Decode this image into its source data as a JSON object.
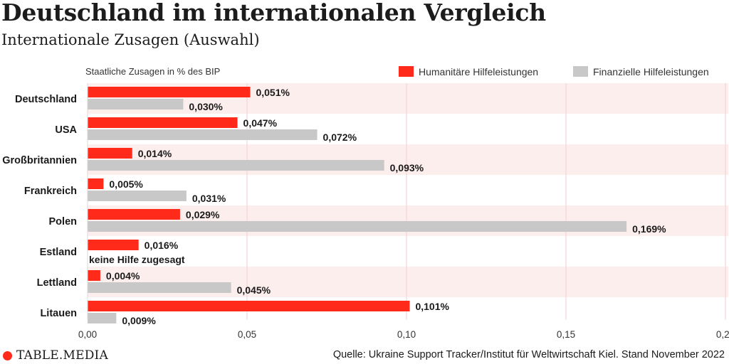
{
  "header": {
    "title": "Deutschland im internationalen Vergleich",
    "subtitle": "Internationale Zusagen (Auswahl)"
  },
  "footer": {
    "brand_main": "TABLE",
    "brand_dot": ".",
    "brand_sub": "MEDIA",
    "source": "Quelle: Ukraine Support Tracker/Institut für Weltwirtschaft Kiel. Stand November 2022"
  },
  "colors": {
    "humanitarian": "#ff2a1a",
    "financial": "#c8c8c8",
    "band": "#fdeeee",
    "grid": "#f3cfcf",
    "brand_dot": "#ff2a1a"
  },
  "chart_data": {
    "type": "bar",
    "orientation": "horizontal",
    "ylabel": "Staatliche Zusagen in % des BIP",
    "xlim": [
      0,
      0.2
    ],
    "x_ticks": [
      "0,00",
      "0,05",
      "0,10",
      "0,15",
      "0,20"
    ],
    "x_tick_values": [
      0,
      0.05,
      0.1,
      0.15,
      0.2
    ],
    "legend_position": "top-right",
    "grid": true,
    "categories": [
      "Deutschland",
      "USA",
      "Großbritannien",
      "Frankreich",
      "Polen",
      "Estland",
      "Lettland",
      "Litauen"
    ],
    "series": [
      {
        "name": "Humanitäre Hilfeleistungen",
        "values": [
          0.051,
          0.047,
          0.014,
          0.005,
          0.029,
          0.016,
          0.004,
          0.101
        ],
        "labels": [
          "0,051%",
          "0,047%",
          "0,014%",
          "0,005%",
          "0,029%",
          "0,016%",
          "0,004%",
          "0,101%"
        ]
      },
      {
        "name": "Finanzielle Hilfeleistungen",
        "values": [
          0.03,
          0.072,
          0.093,
          0.031,
          0.169,
          null,
          0.045,
          0.009
        ],
        "labels": [
          "0,030%",
          "0,072%",
          "0,093%",
          "0,031%",
          "0,169%",
          "keine Hilfe zugesagt",
          "0,045%",
          "0,009%"
        ]
      }
    ]
  }
}
